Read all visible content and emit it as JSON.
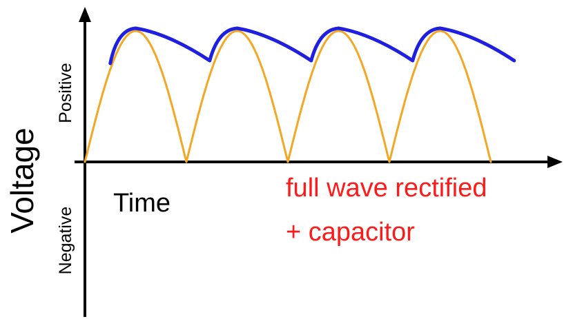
{
  "axes": {
    "y_label": "Voltage",
    "positive_label": "Positive",
    "negative_label": "Negative",
    "x_label": "Time"
  },
  "caption": {
    "line1": "full wave rectified",
    "line2": "+ capacitor"
  },
  "colors": {
    "rectified_wave": "#f5a623",
    "smoothed_wave": "#1f1fe0",
    "caption": "#ff1a1a",
    "axes": "#000000"
  },
  "waveform": {
    "rectified_half_cycles": 4,
    "smoothed_peaks": 4
  }
}
